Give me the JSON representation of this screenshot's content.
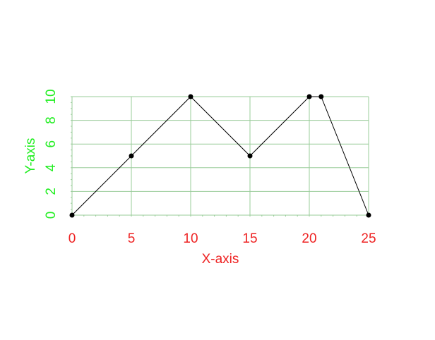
{
  "chart_data": {
    "type": "line",
    "x": [
      0,
      5,
      10,
      15,
      20,
      21,
      25
    ],
    "y": [
      0,
      5,
      10,
      5,
      10,
      10,
      0
    ],
    "xlabel": "X-axis",
    "ylabel": "Y-axis",
    "xlim": [
      0,
      25
    ],
    "ylim": [
      0,
      10
    ],
    "x_ticks": [
      0,
      5,
      10,
      15,
      20,
      25
    ],
    "y_ticks": [
      0,
      2,
      4,
      6,
      8,
      10
    ],
    "grid": true,
    "markers": true,
    "colors": {
      "line": "#000000",
      "marker": "#000000",
      "grid": "#99cc99",
      "x_text": "#ee2222",
      "y_text": "#22ee22"
    }
  }
}
